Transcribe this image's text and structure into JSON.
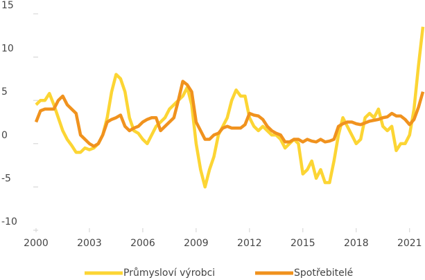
{
  "chart_data": {
    "type": "line",
    "x": [
      2000,
      2000.25,
      2000.5,
      2000.75,
      2001,
      2001.25,
      2001.5,
      2001.75,
      2002,
      2002.25,
      2002.5,
      2002.75,
      2003,
      2003.25,
      2003.5,
      2003.75,
      2004,
      2004.25,
      2004.5,
      2004.75,
      2005,
      2005.25,
      2005.5,
      2005.75,
      2006,
      2006.25,
      2006.5,
      2006.75,
      2007,
      2007.25,
      2007.5,
      2007.75,
      2008,
      2008.25,
      2008.5,
      2008.75,
      2009,
      2009.25,
      2009.5,
      2009.75,
      2010,
      2010.25,
      2010.5,
      2010.75,
      2011,
      2011.25,
      2011.5,
      2011.75,
      2012,
      2012.25,
      2012.5,
      2012.75,
      2013,
      2013.25,
      2013.5,
      2013.75,
      2014,
      2014.25,
      2014.5,
      2014.75,
      2015,
      2015.25,
      2015.5,
      2015.75,
      2016,
      2016.25,
      2016.5,
      2016.75,
      2017,
      2017.25,
      2017.5,
      2017.75,
      2018,
      2018.25,
      2018.5,
      2018.75,
      2019,
      2019.25,
      2019.5,
      2019.75,
      2020,
      2020.25,
      2020.5,
      2020.75,
      2021,
      2021.25,
      2021.5,
      2021.75
    ],
    "series": [
      {
        "name": "Průmysloví výrobci",
        "color": "#fcd534",
        "values": [
          4.5,
          5,
          5,
          5.8,
          4.5,
          3,
          1.5,
          0.5,
          -0.2,
          -1,
          -1,
          -0.5,
          -0.7,
          -0.5,
          0,
          1,
          3,
          6,
          8,
          7.5,
          6,
          3,
          1.5,
          1.2,
          0.5,
          0,
          1,
          2,
          2.5,
          3,
          4,
          4.5,
          5,
          5.5,
          6.5,
          4.5,
          0,
          -3,
          -5,
          -3,
          -1.5,
          1,
          2,
          3,
          5,
          6.2,
          5.5,
          5.5,
          3,
          2,
          1.5,
          2,
          1.5,
          1,
          1,
          0.5,
          -0.5,
          0,
          0.5,
          0,
          -3.5,
          -3,
          -2,
          -4,
          -3,
          -4.5,
          -4.5,
          -2,
          1,
          3,
          2,
          1,
          0,
          0.5,
          3,
          3.5,
          3,
          4,
          2,
          1.5,
          2,
          -0.8,
          0,
          0,
          1,
          4,
          9,
          13.5
        ]
      },
      {
        "name": "Spotřebitelé",
        "color": "#f0921e",
        "values": [
          2.5,
          3.8,
          4,
          4,
          4,
          5,
          5.5,
          4.5,
          4,
          3.5,
          1,
          0.5,
          0,
          -0.3,
          0,
          1,
          2.5,
          2.8,
          3,
          3.3,
          2,
          1.5,
          1.8,
          2,
          2.5,
          2.8,
          3,
          3,
          1.5,
          2,
          2.5,
          3,
          5,
          7.2,
          6.8,
          6,
          2.5,
          1.5,
          0.5,
          0.5,
          1,
          1.2,
          1.8,
          2,
          1.8,
          1.8,
          1.8,
          2.2,
          3.5,
          3.3,
          3.2,
          2.8,
          2,
          1.5,
          1.2,
          1,
          0.2,
          0.2,
          0.5,
          0.5,
          0.2,
          0.5,
          0.3,
          0.2,
          0.5,
          0.2,
          0.3,
          0.5,
          2,
          2.3,
          2.5,
          2.5,
          2.3,
          2.2,
          2.4,
          2.6,
          2.7,
          2.8,
          3,
          3.1,
          3.5,
          3.2,
          3.2,
          2.8,
          2.2,
          2.8,
          4.2,
          6
        ]
      }
    ],
    "xlim": [
      2000,
      2021.75
    ],
    "xticks": [
      2000,
      2003,
      2006,
      2009,
      2012,
      2015,
      2018,
      2021
    ],
    "ylim": [
      -10,
      15
    ],
    "yticks": [
      15,
      10,
      5,
      0,
      -5,
      -10
    ]
  }
}
